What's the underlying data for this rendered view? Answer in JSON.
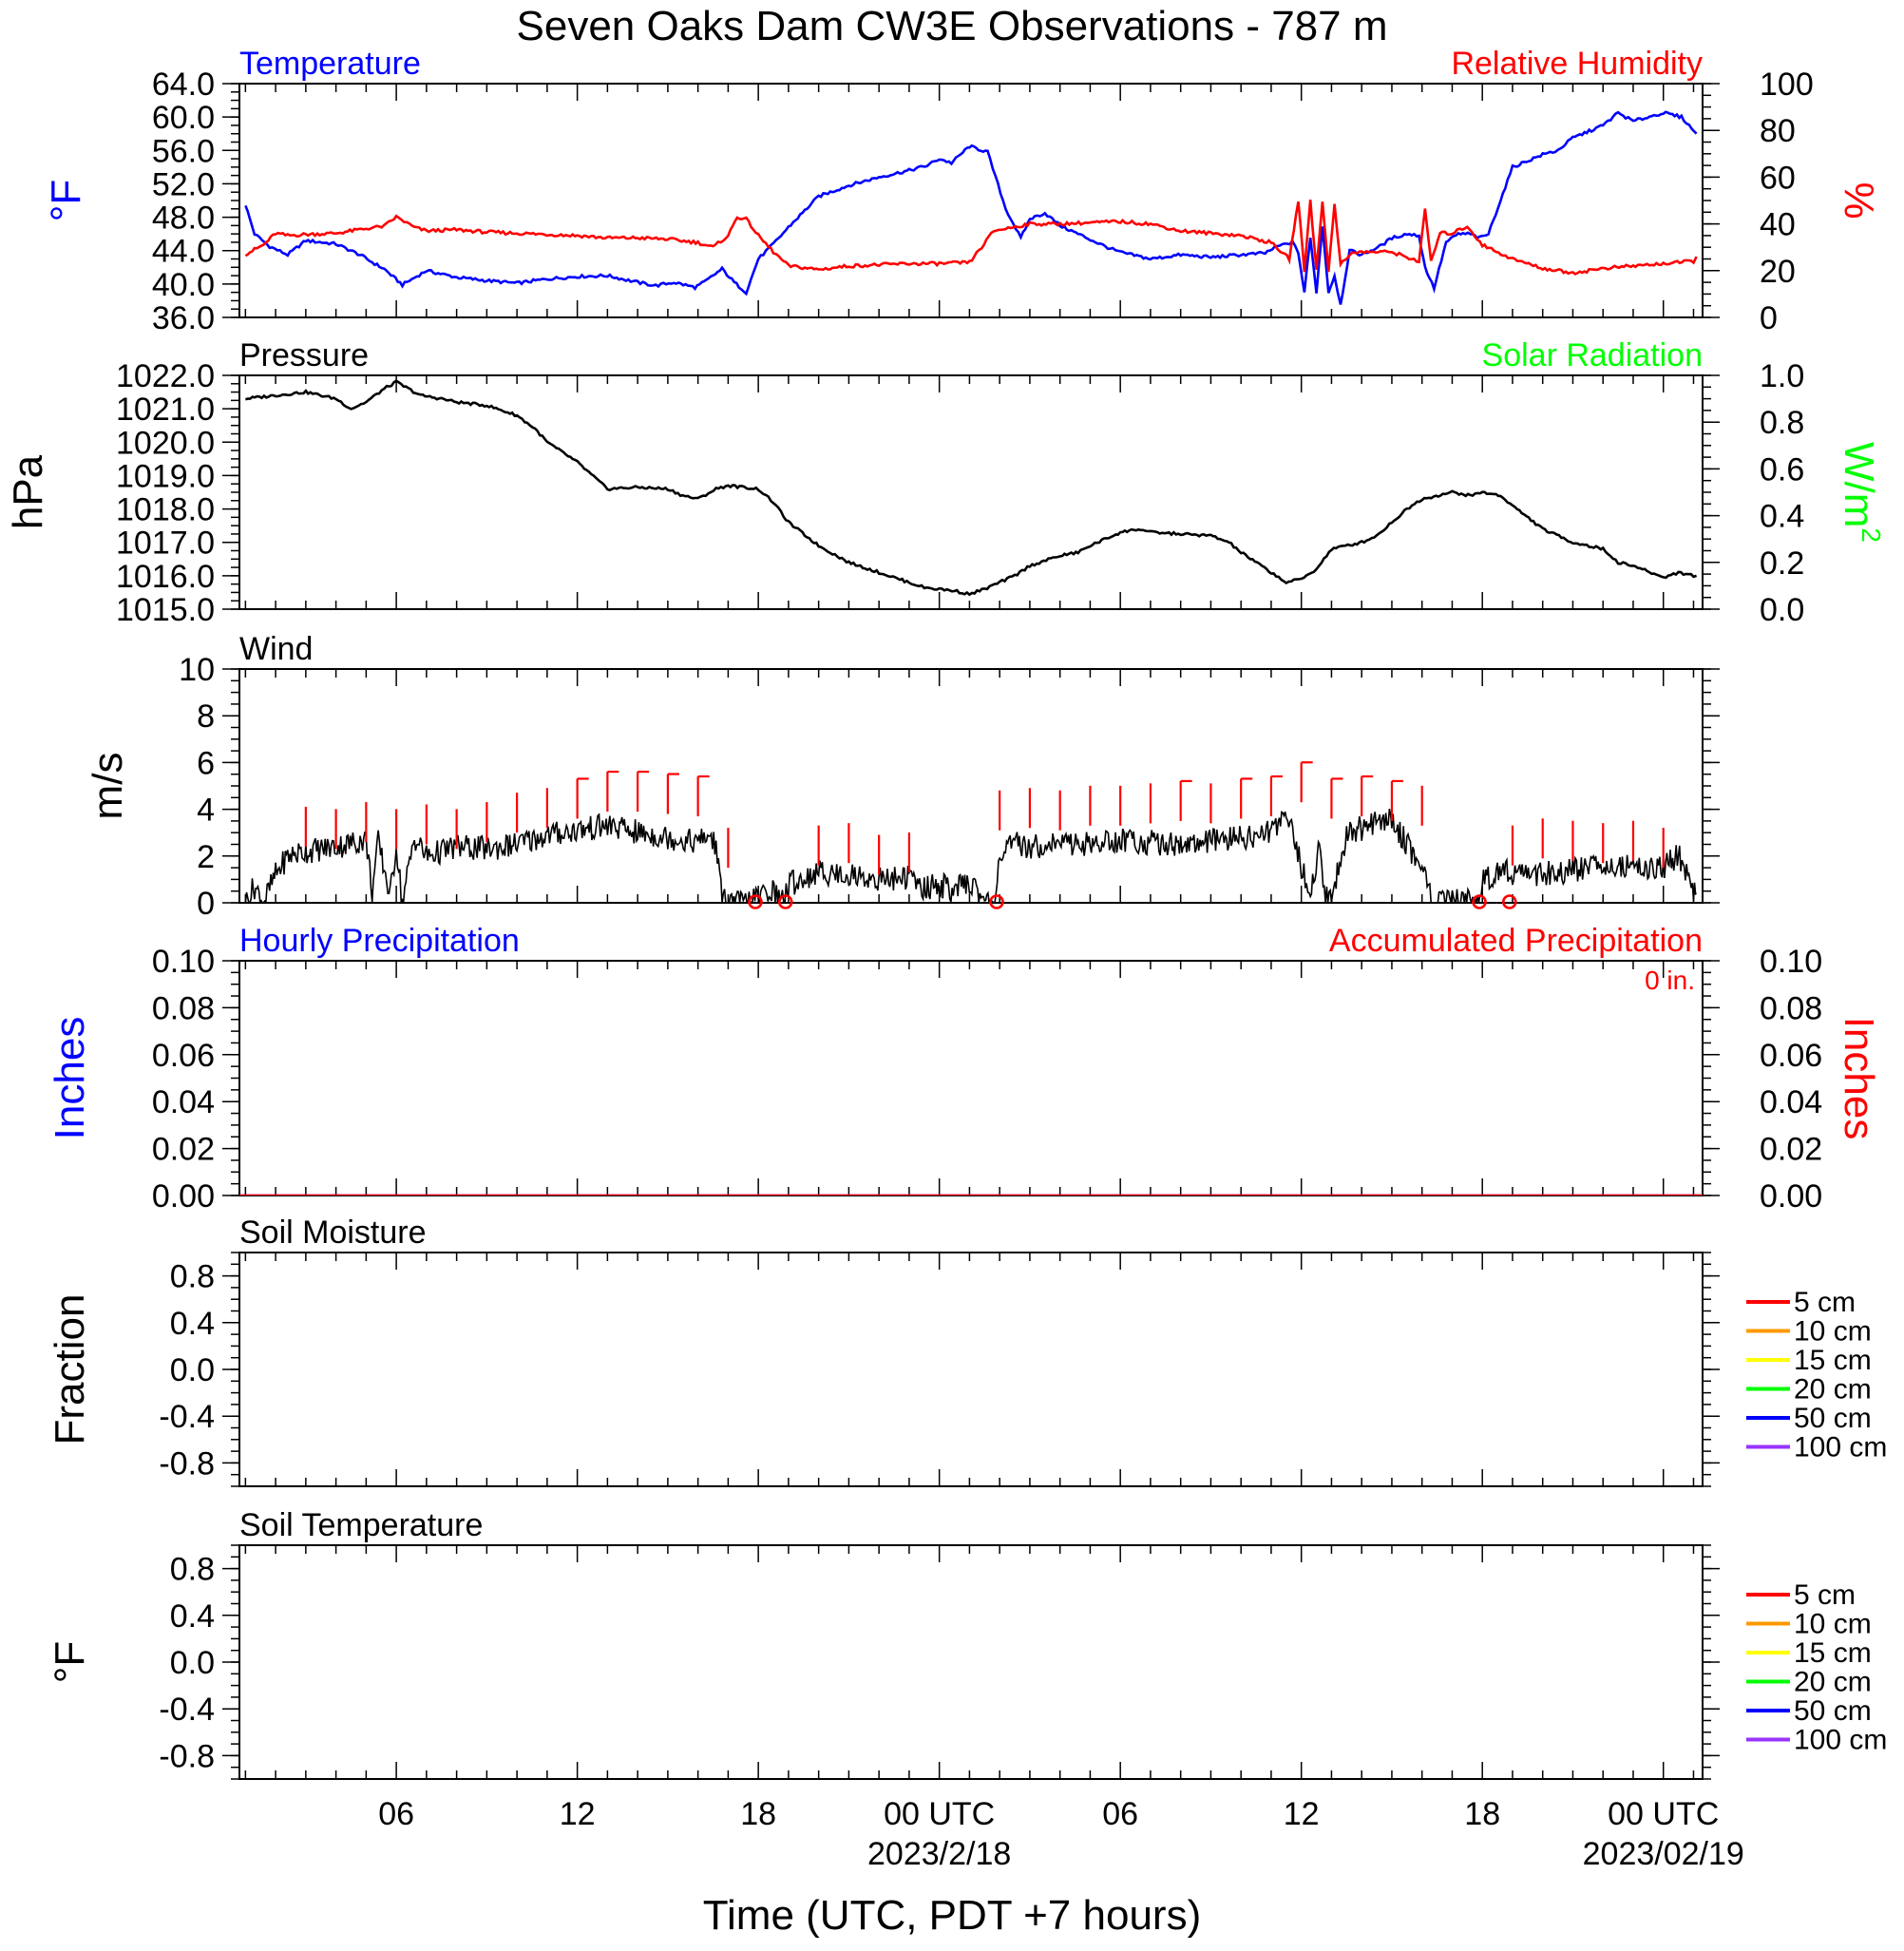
{
  "title": "Seven Oaks Dam CW3E Observations - 787 m",
  "xlabel": "Time (UTC, PDT +7 hours)",
  "colors": {
    "temperature": "#0000ff",
    "humidity": "#ff0000",
    "pressure": "#000000",
    "solar": "#00ff00",
    "wind": "#000000",
    "barb": "#ff0000",
    "hourly_precip": "#0000ff",
    "accum_precip": "#ff0000"
  },
  "x_axis": {
    "range_hours": [
      -0.2,
      48.3
    ],
    "ticks": [
      {
        "hour": 5,
        "label": "06"
      },
      {
        "hour": 11,
        "label": "12"
      },
      {
        "hour": 17,
        "label": "18"
      },
      {
        "hour": 23,
        "label": "00 UTC"
      },
      {
        "hour": 29,
        "label": "06"
      },
      {
        "hour": 35,
        "label": "12"
      },
      {
        "hour": 41,
        "label": "18"
      },
      {
        "hour": 47,
        "label": "00 UTC"
      }
    ],
    "dates": [
      {
        "hour": 23,
        "label": "2023/2/18"
      },
      {
        "hour": 47,
        "label": "2023/02/19"
      }
    ]
  },
  "chart_data": [
    {
      "type": "line",
      "id": "temp_rh",
      "title_left": "Temperature",
      "title_right": "Relative Humidity",
      "ylabel_left": "°F",
      "ylabel_right": "%",
      "ylim_left": [
        36,
        64
      ],
      "ylim_right": [
        0,
        100
      ],
      "yticks_left": [
        "36.0",
        "40.0",
        "44.0",
        "48.0",
        "52.0",
        "56.0",
        "60.0",
        "64.0"
      ],
      "yticks_right": [
        "0",
        "20",
        "40",
        "60",
        "80",
        "100"
      ],
      "series": [
        {
          "name": "Temperature",
          "axis": "left",
          "x": [
            0.0,
            0.3,
            0.8,
            1.4,
            2.0,
            3.0,
            3.8,
            4.2,
            4.6,
            5.2,
            6.0,
            7.0,
            8.0,
            9.0,
            10.0,
            11.0,
            12.0,
            13.0,
            13.6,
            14.2,
            14.9,
            15.2,
            15.5,
            15.8,
            16.2,
            16.6,
            17.0,
            17.5,
            18.0,
            19.0,
            20.0,
            21.0,
            22.0,
            22.6,
            23.0,
            23.4,
            24.0,
            24.6,
            25.2,
            25.7,
            26.0,
            26.5,
            27.0,
            27.6,
            28.5,
            29.0,
            30.0,
            31.0,
            32.0,
            33.0,
            33.8,
            34.2,
            34.7,
            34.9,
            35.1,
            35.3,
            35.5,
            35.7,
            35.9,
            36.1,
            36.3,
            36.6,
            37.0,
            37.6,
            38.0,
            38.5,
            38.9,
            39.1,
            39.4,
            39.8,
            40.2,
            40.6,
            40.9,
            41.2,
            42.0,
            43.0,
            43.5,
            44.0,
            45.0,
            45.5,
            46.0,
            47.0,
            47.6,
            48.1
          ],
          "values": [
            49.5,
            46.0,
            44.5,
            43.5,
            45.2,
            44.8,
            43.5,
            42.6,
            41.8,
            39.9,
            41.6,
            40.8,
            40.4,
            40.1,
            40.6,
            40.9,
            41.0,
            40.2,
            39.8,
            40.2,
            39.6,
            40.2,
            41.0,
            41.8,
            40.2,
            39.0,
            43.0,
            44.8,
            46.8,
            50.5,
            51.8,
            52.8,
            53.6,
            54.2,
            55.0,
            54.5,
            56.5,
            55.8,
            49.0,
            45.5,
            47.8,
            48.5,
            47.0,
            46.0,
            44.5,
            43.8,
            43.0,
            43.5,
            43.2,
            43.5,
            43.7,
            44.5,
            45.0,
            43.8,
            39.0,
            45.5,
            39.0,
            47.0,
            39.0,
            41.0,
            37.5,
            44.0,
            43.5,
            44.5,
            45.5,
            46.0,
            45.8,
            42.0,
            39.5,
            45.0,
            46.0,
            46.0,
            45.5,
            46.0,
            54.0,
            55.5,
            56.0,
            57.5,
            59.0,
            60.5,
            59.5,
            60.5,
            60.0,
            58.0
          ]
        },
        {
          "name": "Relative Humidity",
          "axis": "right",
          "x": [
            0.0,
            0.6,
            1.0,
            1.4,
            2.0,
            3.0,
            4.0,
            4.6,
            5.0,
            5.6,
            6.0,
            7.0,
            8.0,
            9.0,
            10.0,
            11.0,
            12.0,
            13.0,
            14.0,
            15.0,
            15.5,
            16.0,
            16.3,
            16.6,
            17.0,
            17.5,
            18.0,
            19.0,
            20.0,
            21.0,
            22.0,
            23.0,
            24.0,
            24.4,
            24.8,
            25.2,
            26.0,
            27.0,
            28.0,
            29.0,
            30.0,
            31.0,
            32.0,
            33.0,
            34.0,
            34.6,
            34.9,
            35.1,
            35.3,
            35.5,
            35.7,
            35.9,
            36.1,
            36.3,
            36.6,
            37.0,
            38.0,
            38.9,
            39.1,
            39.3,
            39.6,
            40.0,
            40.5,
            41.0,
            42.0,
            43.0,
            44.0,
            45.0,
            46.0,
            47.0,
            48.0,
            48.1
          ],
          "values": [
            27.0,
            31.0,
            36.0,
            35.0,
            35.5,
            36.0,
            38.0,
            39.0,
            43.0,
            38.5,
            37.0,
            37.5,
            36.5,
            36.0,
            35.5,
            35.0,
            34.0,
            34.0,
            33.5,
            32.0,
            30.0,
            35.0,
            43.0,
            42.0,
            35.0,
            28.0,
            22.0,
            20.5,
            22.0,
            22.5,
            23.0,
            23.0,
            23.5,
            30.0,
            37.0,
            38.0,
            40.0,
            40.0,
            40.5,
            41.0,
            40.0,
            37.0,
            36.0,
            35.0,
            32.0,
            25.0,
            50.0,
            20.0,
            50.0,
            20.0,
            50.0,
            20.0,
            48.0,
            23.0,
            27.0,
            28.0,
            28.0,
            24.0,
            46.0,
            24.0,
            36.0,
            36.0,
            39.0,
            31.0,
            25.0,
            21.0,
            19.0,
            21.0,
            22.0,
            23.0,
            24.0,
            26.0
          ]
        }
      ]
    },
    {
      "type": "line",
      "id": "pressure",
      "title_left": "Pressure",
      "title_right": "Solar Radiation",
      "ylabel_left": "hPa",
      "ylabel_right": "W/m",
      "ylabel_right_sup": "2",
      "ylim_left": [
        1015,
        1022
      ],
      "ylim_right": [
        0,
        1
      ],
      "yticks_left": [
        "1015.0",
        "1016.0",
        "1017.0",
        "1018.0",
        "1019.0",
        "1020.0",
        "1021.0",
        "1022.0"
      ],
      "yticks_right": [
        "0.0",
        "0.2",
        "0.4",
        "0.6",
        "0.8",
        "1.0"
      ],
      "series": [
        {
          "name": "Pressure",
          "axis": "left",
          "x": [
            0.0,
            1.0,
            2.0,
            3.0,
            3.5,
            4.0,
            4.6,
            5.0,
            5.8,
            6.5,
            7.0,
            8.0,
            9.0,
            9.6,
            10.0,
            11.0,
            12.0,
            13.0,
            14.0,
            14.5,
            15.0,
            15.6,
            16.0,
            17.0,
            17.5,
            18.0,
            19.0,
            20.0,
            21.0,
            22.0,
            22.5,
            23.0,
            23.5,
            24.0,
            24.5,
            25.0,
            25.5,
            26.0,
            27.0,
            27.6,
            28.0,
            29.0,
            29.6,
            30.0,
            31.0,
            32.0,
            32.6,
            33.0,
            34.0,
            34.5,
            35.0,
            35.5,
            36.0,
            37.0,
            37.5,
            38.0,
            38.5,
            39.0,
            40.0,
            40.6,
            41.0,
            41.6,
            42.0,
            43.0,
            44.0,
            45.0,
            45.5,
            46.0,
            47.0,
            47.5,
            48.0,
            48.1
          ],
          "values": [
            1021.3,
            1021.4,
            1021.5,
            1021.3,
            1021.0,
            1021.2,
            1021.6,
            1021.8,
            1021.4,
            1021.3,
            1021.2,
            1021.1,
            1020.8,
            1020.4,
            1020.0,
            1019.4,
            1018.6,
            1018.65,
            1018.6,
            1018.4,
            1018.3,
            1018.6,
            1018.7,
            1018.6,
            1018.2,
            1017.6,
            1016.9,
            1016.4,
            1016.1,
            1015.8,
            1015.65,
            1015.6,
            1015.55,
            1015.45,
            1015.6,
            1015.8,
            1016.0,
            1016.3,
            1016.6,
            1016.7,
            1016.9,
            1017.3,
            1017.4,
            1017.3,
            1017.25,
            1017.2,
            1017.0,
            1016.7,
            1016.1,
            1015.8,
            1015.9,
            1016.2,
            1016.8,
            1017.0,
            1017.2,
            1017.6,
            1018.0,
            1018.3,
            1018.5,
            1018.4,
            1018.5,
            1018.4,
            1018.1,
            1017.4,
            1017.0,
            1016.8,
            1016.4,
            1016.3,
            1015.95,
            1016.1,
            1016.0,
            1016.0
          ]
        }
      ]
    },
    {
      "type": "line",
      "id": "wind",
      "title_left": "Wind",
      "ylabel_left": "m/s",
      "ylim_left": [
        0,
        10
      ],
      "yticks_left": [
        "0",
        "2",
        "4",
        "6",
        "8",
        "10"
      ],
      "series": [
        {
          "name": "Wind",
          "axis": "left",
          "x": [
            0.0,
            0.3,
            0.6,
            0.8,
            1.0,
            1.4,
            2.0,
            3.0,
            4.0,
            4.2,
            4.4,
            4.8,
            5.0,
            5.2,
            5.6,
            6.0,
            7.0,
            8.0,
            9.0,
            10.0,
            11.0,
            12.0,
            13.0,
            14.0,
            15.0,
            15.4,
            15.6,
            15.8,
            16.0,
            16.5,
            17.0,
            17.4,
            17.8,
            18.0,
            19.0,
            20.0,
            21.0,
            22.0,
            22.5,
            23.0,
            23.5,
            24.0,
            24.5,
            24.8,
            25.0,
            25.5,
            26.0,
            27.0,
            28.0,
            29.0,
            30.0,
            31.0,
            32.0,
            33.0,
            34.0,
            34.5,
            34.8,
            35.0,
            35.3,
            35.6,
            35.8,
            36.0,
            36.5,
            37.0,
            38.0,
            38.5,
            39.0,
            39.3,
            39.6,
            40.0,
            40.4,
            40.8,
            41.0,
            41.5,
            42.0,
            43.0,
            44.0,
            45.0,
            46.0,
            47.0,
            47.5,
            48.0,
            48.1
          ],
          "values": [
            0.0,
            0.7,
            0.0,
            0.6,
            1.2,
            2.0,
            2.2,
            2.4,
            2.7,
            0.5,
            2.6,
            0.3,
            2.5,
            0.0,
            2.8,
            2.0,
            2.4,
            2.3,
            2.5,
            2.9,
            3.1,
            3.3,
            3.0,
            2.8,
            2.6,
            2.9,
            2.4,
            0.1,
            0.0,
            0.0,
            0.2,
            0.6,
            0.1,
            0.8,
            1.3,
            1.2,
            1.0,
            1.1,
            0.6,
            0.8,
            0.5,
            0.9,
            0.1,
            0.0,
            2.0,
            2.5,
            2.4,
            2.6,
            2.5,
            2.7,
            2.6,
            2.5,
            2.6,
            2.8,
            3.0,
            4.1,
            2.5,
            1.5,
            0.3,
            2.5,
            0.2,
            0.1,
            3.0,
            3.2,
            3.6,
            2.5,
            1.6,
            0.2,
            0.0,
            0.0,
            0.1,
            0.0,
            0.9,
            1.4,
            1.3,
            1.2,
            1.4,
            1.7,
            1.6,
            1.5,
            2.1,
            0.6,
            0.4
          ]
        }
      ],
      "barbs": {
        "x": [
          2.0,
          3.0,
          4.0,
          5.0,
          6.0,
          7.0,
          8.0,
          9.0,
          10.0,
          11.0,
          12.0,
          13.0,
          14.0,
          15.0,
          16.0,
          19.0,
          20.0,
          21.0,
          22.0,
          25.0,
          26.0,
          27.0,
          28.0,
          29.0,
          30.0,
          31.0,
          32.0,
          33.0,
          34.0,
          35.0,
          36.0,
          37.0,
          38.0,
          39.0,
          42.0,
          43.0,
          44.0,
          45.0,
          46.0,
          47.0
        ],
        "speeds": [
          2.4,
          2.3,
          2.6,
          2.3,
          2.5,
          2.3,
          2.6,
          3.0,
          3.2,
          3.6,
          3.9,
          3.9,
          3.8,
          3.7,
          1.5,
          1.6,
          1.7,
          1.2,
          1.3,
          3.1,
          3.2,
          3.1,
          3.3,
          3.3,
          3.4,
          3.5,
          3.4,
          3.6,
          3.7,
          4.3,
          3.6,
          3.7,
          3.5,
          3.3,
          1.6,
          1.9,
          1.8,
          1.7,
          1.8,
          1.5
        ],
        "calm_x": [
          16.9,
          17.9,
          24.9,
          40.9,
          41.9
        ]
      }
    },
    {
      "type": "line",
      "id": "precip",
      "title_left": "Hourly Precipitation",
      "title_right": "Accumulated Precipitation",
      "annotation": "0 in.",
      "ylabel_left": "Inches",
      "ylabel_right": "Inches",
      "ylim_left": [
        0,
        0.1
      ],
      "ylim_right": [
        0,
        0.1
      ],
      "yticks_left": [
        "0.00",
        "0.02",
        "0.04",
        "0.06",
        "0.08",
        "0.10"
      ],
      "yticks_right": [
        "0.00",
        "0.02",
        "0.04",
        "0.06",
        "0.08",
        "0.10"
      ],
      "series": [
        {
          "name": "Hourly Precipitation",
          "axis": "left",
          "x": [
            -0.2,
            48.3
          ],
          "values": [
            0,
            0
          ]
        },
        {
          "name": "Accumulated Precipitation",
          "axis": "right",
          "x": [
            -0.2,
            48.3
          ],
          "values": [
            0,
            0
          ]
        }
      ]
    },
    {
      "type": "line",
      "id": "soil_moisture",
      "title_left": "Soil Moisture",
      "ylabel_left": "Fraction",
      "ylim_left": [
        -1,
        1
      ],
      "yticks_left": [
        "-0.8",
        "-0.4",
        "0.0",
        "0.4",
        "0.8"
      ],
      "legend": [
        {
          "label": "5 cm",
          "color": "#ff0000"
        },
        {
          "label": "10 cm",
          "color": "#ff9900"
        },
        {
          "label": "15 cm",
          "color": "#ffff00"
        },
        {
          "label": "20 cm",
          "color": "#00ff00"
        },
        {
          "label": "50 cm",
          "color": "#0000ff"
        },
        {
          "label": "100 cm",
          "color": "#9933ff"
        }
      ],
      "series": []
    },
    {
      "type": "line",
      "id": "soil_temperature",
      "title_left": "Soil Temperature",
      "ylabel_left": "°F",
      "ylim_left": [
        -1,
        1
      ],
      "yticks_left": [
        "-0.8",
        "-0.4",
        "0.0",
        "0.4",
        "0.8"
      ],
      "legend": [
        {
          "label": "5 cm",
          "color": "#ff0000"
        },
        {
          "label": "10 cm",
          "color": "#ff9900"
        },
        {
          "label": "15 cm",
          "color": "#ffff00"
        },
        {
          "label": "20 cm",
          "color": "#00ff00"
        },
        {
          "label": "50 cm",
          "color": "#0000ff"
        },
        {
          "label": "100 cm",
          "color": "#9933ff"
        }
      ],
      "series": []
    }
  ]
}
